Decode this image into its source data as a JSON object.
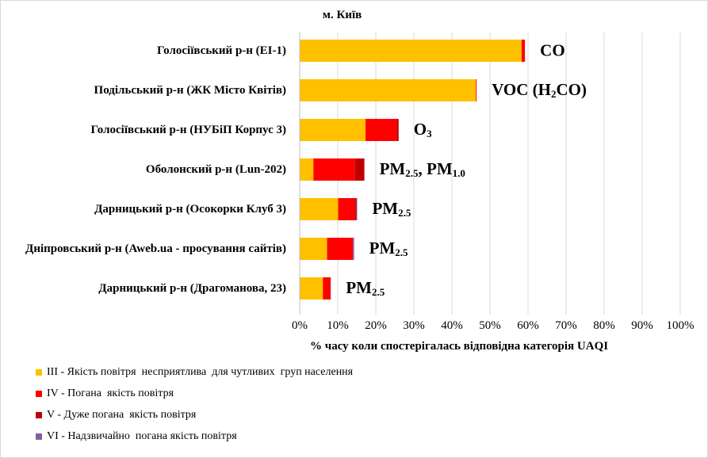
{
  "chart_data": {
    "type": "bar",
    "orientation": "horizontal",
    "stacked": true,
    "title": "м. Київ",
    "xlabel": "% часу коли спостерігалась відповідна категорія UAQI",
    "ylabel": "",
    "xlim": [
      0,
      100
    ],
    "grid": true,
    "legend_position": "bottom-left",
    "x_ticks": [
      "0%",
      "10%",
      "20%",
      "30%",
      "40%",
      "50%",
      "60%",
      "70%",
      "80%",
      "90%",
      "100%"
    ],
    "categories": [
      "Голосіївський р-н (ЕІ-1)",
      "Подільський р-н (ЖК Місто Квітів)",
      "Голосіївський р-н (НУБіП Корпус 3)",
      "Оболонский р-н (Lun-202)",
      "Дарницький р-н (Осокорки Клуб 3)",
      "Дніпровський р-н (Aweb.ua - просування сайтів)",
      "Дарницький р-н (Драгоманова, 23)"
    ],
    "annotations": [
      [
        {
          "t": "CO"
        }
      ],
      [
        {
          "t": "VOC (H"
        },
        {
          "t": "2",
          "sub": true
        },
        {
          "t": "CO)"
        }
      ],
      [
        {
          "t": "O"
        },
        {
          "t": "3",
          "sub": true
        }
      ],
      [
        {
          "t": "PM"
        },
        {
          "t": "2.5",
          "sub": true
        },
        {
          "t": ", PM"
        },
        {
          "t": "1.0",
          "sub": true
        }
      ],
      [
        {
          "t": "PM"
        },
        {
          "t": "2.5",
          "sub": true
        }
      ],
      [
        {
          "t": "PM"
        },
        {
          "t": "2.5",
          "sub": true
        }
      ],
      [
        {
          "t": "PM"
        },
        {
          "t": "2.5",
          "sub": true
        }
      ]
    ],
    "series": [
      {
        "name": "ІІІ - Якість повітря  несприятлива  для чутливих  груп населення",
        "color": "#FFC000",
        "values": [
          58.3,
          46.3,
          17.3,
          3.6,
          10.1,
          7.2,
          6.1
        ]
      },
      {
        "name": "IV - Погана  якість повітря",
        "color": "#FF0000",
        "values": [
          0.9,
          0.2,
          8.2,
          10.9,
          4.5,
          6.8,
          2.0
        ]
      },
      {
        "name": "V - Дуже погана  якість повітря",
        "color": "#C00000",
        "values": [
          0,
          0,
          0.5,
          2.5,
          0.3,
          0,
          0
        ]
      },
      {
        "name": "VI - Надзвичайно  погана якість повітря",
        "color": "#7F5FA0",
        "values": [
          0,
          0,
          0,
          0,
          0.2,
          0.3,
          0.1
        ]
      }
    ]
  }
}
